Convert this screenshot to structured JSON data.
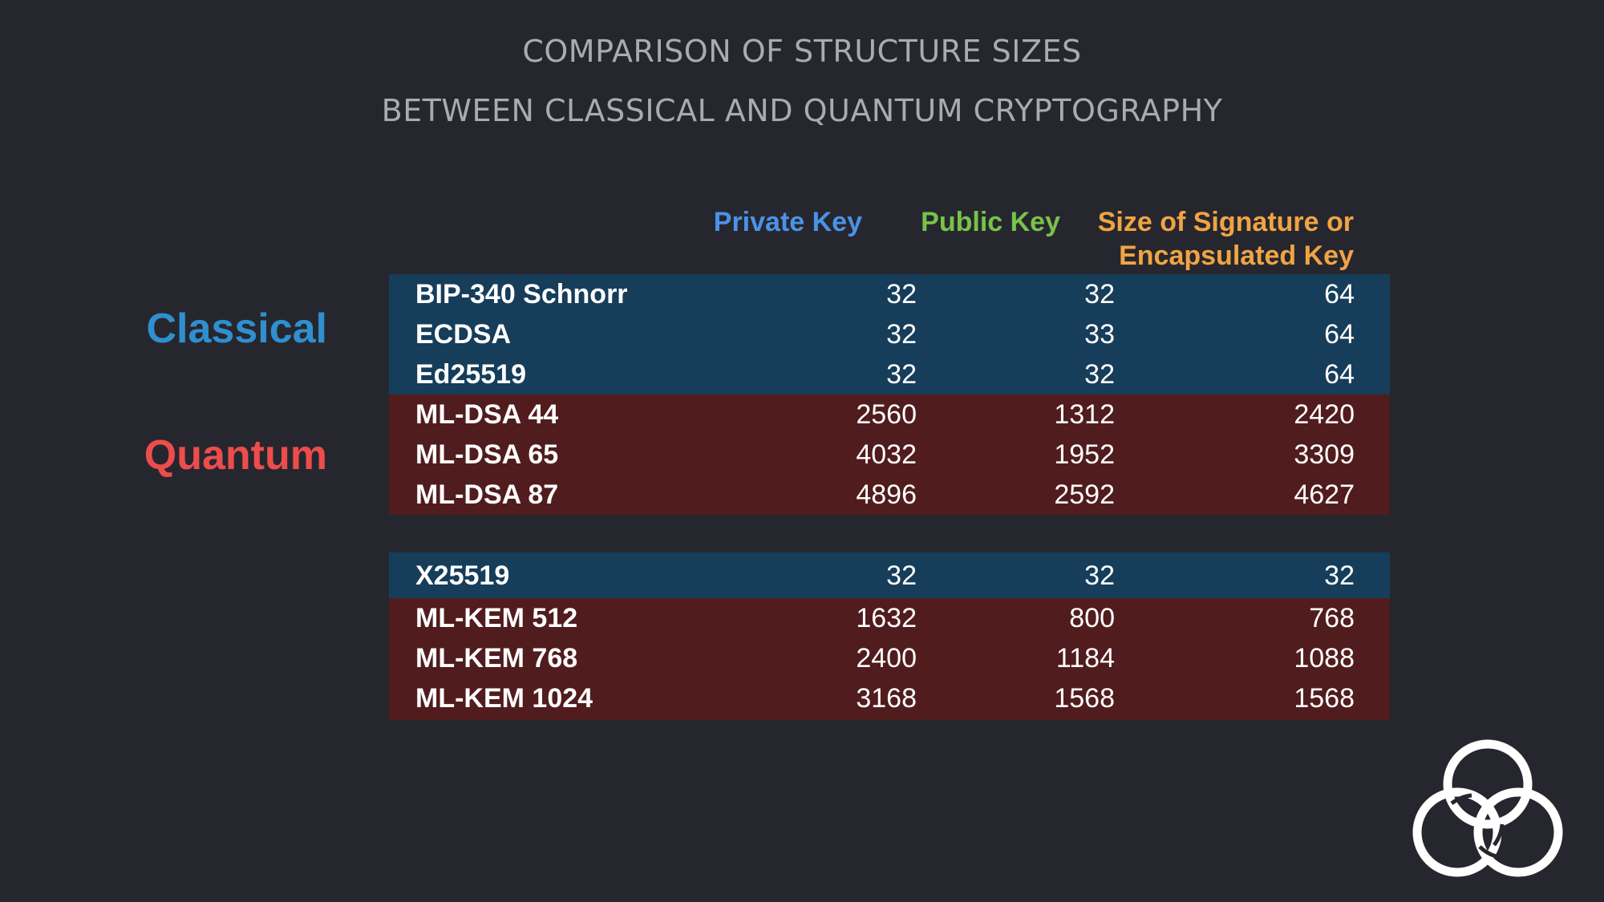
{
  "title": {
    "line1": "COMPARISON OF STRUCTURE SIZES",
    "line2": "BETWEEN CLASSICAL AND QUANTUM CRYPTOGRAPHY"
  },
  "columns": {
    "private_key": "Private Key",
    "public_key": "Public Key",
    "size_line1": "Size of Signature or",
    "size_line2": "Encapsulated Key"
  },
  "group_labels": {
    "classical": "Classical",
    "quantum": "Quantum"
  },
  "colors": {
    "background": "#26272e",
    "classical_row": "#163d5a",
    "quantum_row": "#511c1d",
    "private_key": "#4a93e8",
    "public_key": "#78c24a",
    "size": "#f0a443",
    "classical_label": "#2f8fd0",
    "quantum_label": "#ee4c4c"
  },
  "signature_rows": [
    {
      "name": "BIP-340 Schnorr",
      "private": "32",
      "public": "32",
      "size": "64",
      "type": "classical"
    },
    {
      "name": "ECDSA",
      "private": "32",
      "public": "33",
      "size": "64",
      "type": "classical"
    },
    {
      "name": "Ed25519",
      "private": "32",
      "public": "32",
      "size": "64",
      "type": "classical"
    },
    {
      "name": "ML-DSA 44",
      "private": "2560",
      "public": "1312",
      "size": "2420",
      "type": "quantum"
    },
    {
      "name": "ML-DSA 65",
      "private": "4032",
      "public": "1952",
      "size": "3309",
      "type": "quantum"
    },
    {
      "name": "ML-DSA 87",
      "private": "4896",
      "public": "2592",
      "size": "4627",
      "type": "quantum"
    }
  ],
  "kem_rows": [
    {
      "name": "X25519",
      "private": "32",
      "public": "32",
      "size": "32",
      "type": "classical"
    },
    {
      "name": "ML-KEM 512",
      "private": "1632",
      "public": "800",
      "size": "768",
      "type": "quantum"
    },
    {
      "name": "ML-KEM 768",
      "private": "2400",
      "public": "1184",
      "size": "1088",
      "type": "quantum"
    },
    {
      "name": "ML-KEM 1024",
      "private": "3168",
      "public": "1568",
      "size": "1568",
      "type": "quantum"
    }
  ],
  "logo": {
    "icon": "interlocking-rings-logo"
  }
}
